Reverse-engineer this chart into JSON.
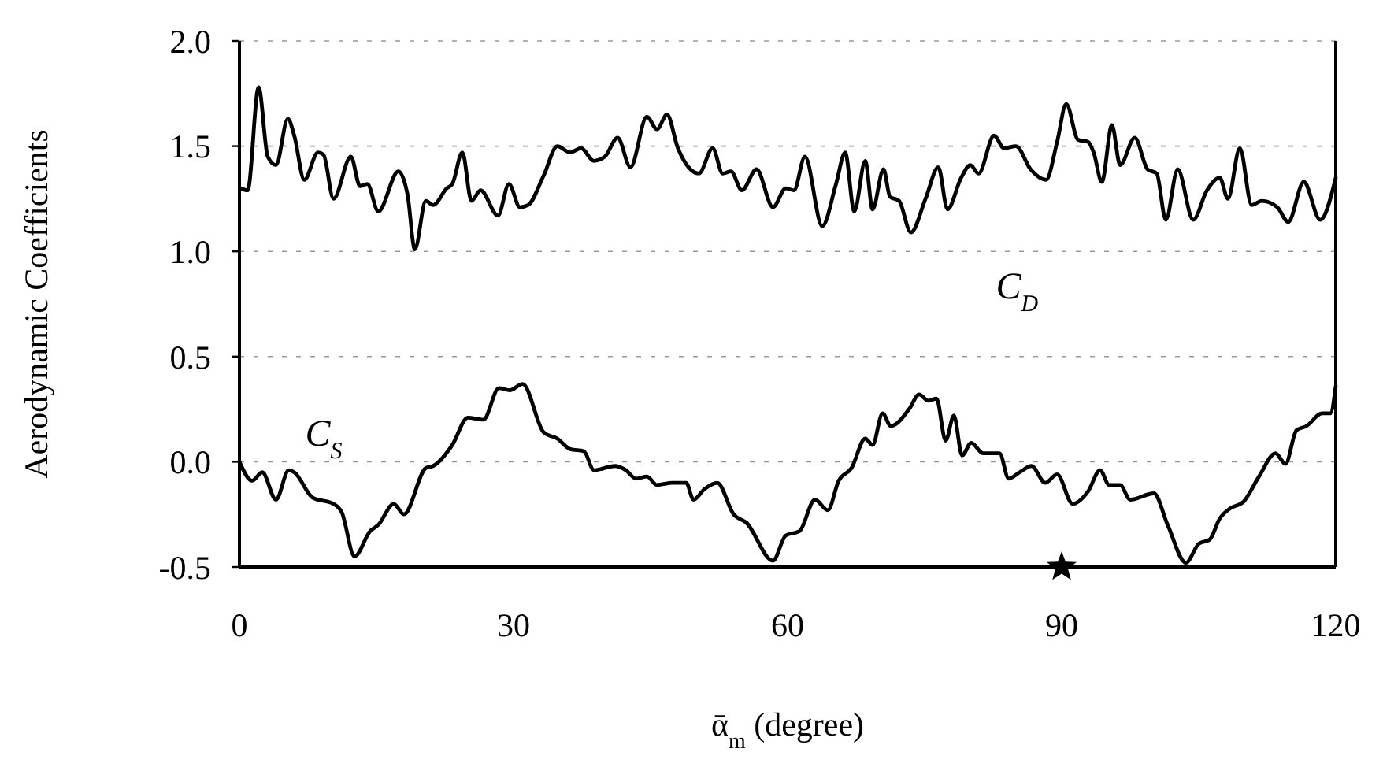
{
  "chart_data": {
    "type": "line",
    "ylabel": "Aerodynamic Coefficients",
    "xlabel": "ᾱ$_{m}$ (degree)",
    "xlim": [
      0,
      120
    ],
    "xticks": [
      0,
      30,
      60,
      90,
      120
    ],
    "ylim": [
      -0.5,
      2.0
    ],
    "yticks": [
      {
        "value": -0.5,
        "label": "-0.5"
      },
      {
        "value": 0,
        "label": "0.0"
      },
      {
        "value": 0.5,
        "label": "0.5"
      },
      {
        "value": 1.0,
        "label": "1.0"
      },
      {
        "value": 1.5,
        "label": "1.5"
      },
      {
        "value": 2.0,
        "label": "2.0"
      }
    ],
    "grid": "y",
    "line_style": "solid",
    "marker": "none",
    "series": [
      {
        "name": "C$_{D}$",
        "color": "#000000",
        "x": [
          0.1,
          0.9,
          2.1,
          3.1,
          4.0,
          5.3,
          6.0,
          7.1,
          8.6,
          9.2,
          10.3,
          12.2,
          13.2,
          14.0,
          15.2,
          17.4,
          18.4,
          19.2,
          20.4,
          21.2,
          22.7,
          23.3,
          24.4,
          25.4,
          26.4,
          28.3,
          29.5,
          30.7,
          31.6,
          33.3,
          34.8,
          36.2,
          37.4,
          38.8,
          40.0,
          41.4,
          42.8,
          44.6,
          45.7,
          46.8,
          48.0,
          50.3,
          51.8,
          52.9,
          53.8,
          55.0,
          56.6,
          58.4,
          59.8,
          60.7,
          61.9,
          63.8,
          65.3,
          66.3,
          67.3,
          68.5,
          69.3,
          70.5,
          71.2,
          72.2,
          73.5,
          75.1,
          76.5,
          77.5,
          79.0,
          80.0,
          80.9,
          82.6,
          83.7,
          85.0,
          86.6,
          88.3,
          89.5,
          90.5,
          91.8,
          92.9,
          93.5,
          94.4,
          95.5,
          96.4,
          98.0,
          99.4,
          100.4,
          101.4,
          102.7,
          104.4,
          105.9,
          107.3,
          108.2,
          109.5,
          110.8,
          111.9,
          113.6,
          114.8,
          116.5,
          118.3,
          120.0
        ],
        "values": [
          1.3,
          1.29,
          1.78,
          1.45,
          1.41,
          1.63,
          1.55,
          1.34,
          1.47,
          1.46,
          1.25,
          1.45,
          1.31,
          1.32,
          1.19,
          1.38,
          1.27,
          1.01,
          1.24,
          1.22,
          1.3,
          1.32,
          1.47,
          1.24,
          1.29,
          1.17,
          1.32,
          1.21,
          1.22,
          1.36,
          1.5,
          1.47,
          1.49,
          1.43,
          1.45,
          1.54,
          1.4,
          1.64,
          1.58,
          1.65,
          1.49,
          1.37,
          1.49,
          1.37,
          1.38,
          1.29,
          1.39,
          1.21,
          1.3,
          1.29,
          1.45,
          1.12,
          1.32,
          1.47,
          1.19,
          1.43,
          1.2,
          1.39,
          1.26,
          1.24,
          1.09,
          1.25,
          1.4,
          1.2,
          1.35,
          1.41,
          1.37,
          1.55,
          1.49,
          1.5,
          1.39,
          1.34,
          1.52,
          1.7,
          1.53,
          1.52,
          1.47,
          1.33,
          1.6,
          1.41,
          1.54,
          1.39,
          1.37,
          1.15,
          1.39,
          1.15,
          1.29,
          1.35,
          1.25,
          1.49,
          1.22,
          1.24,
          1.21,
          1.14,
          1.33,
          1.15,
          1.35
        ]
      },
      {
        "name": "C$_{S}$",
        "color": "#000000",
        "x": [
          0,
          1.4,
          2.5,
          4.0,
          5.4,
          6.0,
          8.0,
          10.3,
          11.2,
          12.6,
          14.3,
          15.2,
          16.9,
          18.0,
          20.4,
          21.2,
          23.3,
          25.0,
          26.7,
          28.4,
          29.6,
          31.0,
          33.3,
          34.8,
          36.2,
          37.7,
          38.8,
          41.1,
          42.3,
          43.4,
          44.6,
          45.7,
          47.4,
          48.9,
          49.7,
          50.9,
          52.3,
          54.1,
          55.5,
          58.4,
          59.8,
          61.3,
          63.0,
          64.4,
          65.6,
          67.0,
          68.5,
          69.3,
          70.4,
          71.3,
          73.3,
          74.4,
          75.4,
          76.3,
          77.3,
          78.2,
          79.1,
          80.1,
          81.4,
          83.2,
          84.2,
          85.4,
          86.7,
          88.2,
          89.5,
          91.2,
          92.9,
          94.2,
          95.2,
          96.4,
          97.5,
          100.1,
          101.6,
          103.6,
          105.0,
          106.2,
          107.3,
          108.5,
          109.9,
          111.6,
          113.4,
          114.5,
          115.7,
          116.8,
          118.5,
          119.4,
          120.0
        ],
        "values": [
          0.0,
          -0.09,
          -0.05,
          -0.18,
          -0.04,
          -0.05,
          -0.17,
          -0.2,
          -0.24,
          -0.45,
          -0.33,
          -0.3,
          -0.2,
          -0.25,
          -0.03,
          -0.02,
          0.08,
          0.21,
          0.2,
          0.35,
          0.34,
          0.37,
          0.14,
          0.11,
          0.06,
          0.05,
          -0.04,
          -0.02,
          -0.04,
          -0.08,
          -0.07,
          -0.11,
          -0.1,
          -0.1,
          -0.18,
          -0.13,
          -0.1,
          -0.25,
          -0.29,
          -0.47,
          -0.35,
          -0.33,
          -0.18,
          -0.23,
          -0.09,
          -0.03,
          0.11,
          0.08,
          0.23,
          0.17,
          0.25,
          0.32,
          0.29,
          0.3,
          0.1,
          0.22,
          0.03,
          0.09,
          0.04,
          0.04,
          -0.08,
          -0.05,
          -0.02,
          -0.1,
          -0.06,
          -0.2,
          -0.14,
          -0.04,
          -0.11,
          -0.11,
          -0.18,
          -0.15,
          -0.3,
          -0.48,
          -0.39,
          -0.37,
          -0.27,
          -0.22,
          -0.19,
          -0.07,
          0.04,
          -0.01,
          0.15,
          0.17,
          0.23,
          0.23,
          0.36
        ]
      },
      {
        "type": "scatter",
        "marker": "star",
        "color": "#000000",
        "x": [
          90
        ],
        "values": [
          -0.5
        ]
      }
    ]
  }
}
